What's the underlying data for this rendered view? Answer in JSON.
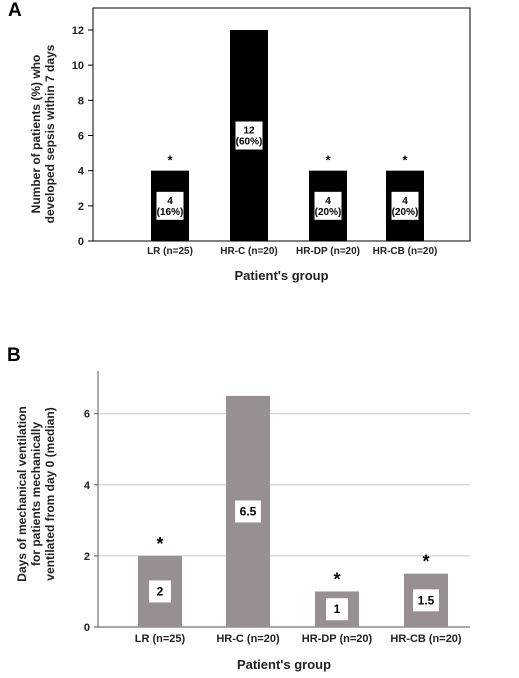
{
  "chart_data": [
    {
      "panel_label": "A",
      "type": "bar",
      "categories": [
        "LR (n=25)",
        "HR-C (n=20)",
        "HR-DP (n=20)",
        "HR-CB (n=20)"
      ],
      "values": [
        4,
        12,
        4,
        4
      ],
      "data_labels": [
        [
          "4",
          "(16%)"
        ],
        [
          "12",
          "(60%)"
        ],
        [
          "4",
          "(20%)"
        ],
        [
          "4",
          "(20%)"
        ]
      ],
      "significance": [
        "*",
        "",
        "*",
        "*"
      ],
      "ylabel_lines": [
        "Number of patients (%) who",
        "developed sepsis within 7 days"
      ],
      "xlabel": "Patient's group",
      "ylim": [
        0,
        12
      ],
      "yticks": [
        0,
        2,
        4,
        6,
        8,
        10,
        12
      ],
      "grid": false,
      "bar_color": "#000000"
    },
    {
      "panel_label": "B",
      "type": "bar",
      "categories": [
        "LR (n=25)",
        "HR-C (n=20)",
        "HR-DP (n=20)",
        "HR-CB (n=20)"
      ],
      "values": [
        2,
        6.5,
        1,
        1.5
      ],
      "data_labels": [
        [
          "2"
        ],
        [
          "6.5"
        ],
        [
          "1"
        ],
        [
          "1.5"
        ]
      ],
      "significance": [
        "*",
        "",
        "*",
        "*"
      ],
      "ylabel_lines": [
        "Days of mechanical ventilation",
        "for patients mechanically",
        "ventilated from day 0 (median)"
      ],
      "xlabel": "Patient's group",
      "ylim": [
        0,
        7.2
      ],
      "yticks": [
        0,
        2,
        4,
        6
      ],
      "grid": true,
      "bar_color": "#989090"
    }
  ]
}
